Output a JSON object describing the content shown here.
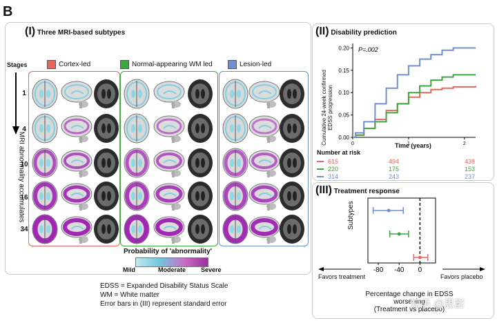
{
  "figure_letter": "B",
  "panel1": {
    "numeral": "(I)",
    "title": "Three MRI-based subtypes",
    "stages_label": "Stages",
    "axis_label": "MRI abnormality accumulates",
    "stages": [
      "1",
      "4",
      "10",
      "16",
      "34"
    ],
    "groups": [
      {
        "label": "Cortex-led",
        "color": "#e8665e"
      },
      {
        "label": "Normal-appearing WM led",
        "color": "#3aa83a"
      },
      {
        "label": "Lesion-led",
        "color": "#6f8fd0"
      }
    ],
    "colorbar": {
      "title": "Probability of 'abnormality'",
      "labels": [
        "Mild",
        "Moderate",
        "Severe"
      ]
    }
  },
  "panel2": {
    "numeral": "(II)",
    "title": "Disability prediction",
    "p_value": "P=.002",
    "ylabel": "Cumulative 24-week confirmed EDSS progression",
    "xlabel": "Time (years)",
    "risk_title": "Number at risk",
    "risk_rows": [
      {
        "color": "#e8665e",
        "values": [
          "615",
          "494",
          "438"
        ]
      },
      {
        "color": "#3aa83a",
        "values": [
          "220",
          "175",
          "153"
        ]
      },
      {
        "color": "#6f8fd0",
        "values": [
          "314",
          "243",
          "237"
        ]
      }
    ]
  },
  "panel3": {
    "numeral": "(III)",
    "title": "Treatment response",
    "ylabel": "Subtypes",
    "favors_treatment": "Favors treatment",
    "favors_placebo": "Favors placebo",
    "xlabel_line1": "Percentage change in EDSS",
    "xlabel_line2": "worsening",
    "xlabel_line3": "(Treatment vs placebo)"
  },
  "footnotes": [
    "EDSS = Expanded Disability Status Scale",
    "WM = White matter",
    "Error bars in (III) represent standard error"
  ],
  "watermark": "知乎 @思影",
  "chart_data": [
    {
      "type": "line",
      "title": "Disability prediction",
      "xlabel": "Time (years)",
      "ylabel": "Cumulative 24-week confirmed EDSS progression",
      "xlim": [
        0,
        2.2
      ],
      "ylim": [
        0,
        0.21
      ],
      "x_ticks": [
        0,
        1,
        2
      ],
      "y_ticks": [
        0.0,
        0.05,
        0.1,
        0.15,
        0.2
      ],
      "y_tick_labels": [
        "0.00",
        "0.05",
        "0.10",
        "0.15",
        "0.20"
      ],
      "series": [
        {
          "name": "Cortex-led",
          "color": "#e8665e",
          "x": [
            0,
            0.05,
            0.2,
            0.4,
            0.6,
            0.8,
            1.0,
            1.2,
            1.4,
            1.6,
            1.8,
            2.2
          ],
          "y": [
            0,
            0.005,
            0.02,
            0.04,
            0.06,
            0.075,
            0.09,
            0.1,
            0.107,
            0.11,
            0.113,
            0.115
          ]
        },
        {
          "name": "Normal-appearing WM led",
          "color": "#3aa83a",
          "x": [
            0,
            0.05,
            0.2,
            0.4,
            0.6,
            0.8,
            1.0,
            1.2,
            1.4,
            1.6,
            1.8,
            2.2
          ],
          "y": [
            0,
            0.005,
            0.02,
            0.035,
            0.055,
            0.075,
            0.1,
            0.115,
            0.128,
            0.135,
            0.14,
            0.14
          ]
        },
        {
          "name": "Lesion-led",
          "color": "#6f8fd0",
          "x": [
            0,
            0.05,
            0.2,
            0.4,
            0.6,
            0.8,
            1.0,
            1.2,
            1.4,
            1.6,
            1.8,
            2.2
          ],
          "y": [
            0,
            0.01,
            0.035,
            0.075,
            0.11,
            0.14,
            0.16,
            0.175,
            0.185,
            0.195,
            0.2,
            0.2
          ]
        }
      ]
    },
    {
      "type": "scatter",
      "title": "Treatment response",
      "xlabel": "Percentage change in EDSS worsening (Treatment vs placebo)",
      "ylabel": "Subtypes",
      "xlim": [
        -100,
        30
      ],
      "x_ticks": [
        -80,
        -40,
        0
      ],
      "points": [
        {
          "name": "Lesion-led",
          "color": "#6f8fd0",
          "estimate": -60,
          "low": -90,
          "high": -32
        },
        {
          "name": "Normal-appearing WM led",
          "color": "#3aa83a",
          "estimate": -40,
          "low": -58,
          "high": -22
        },
        {
          "name": "Cortex-led",
          "color": "#e8665e",
          "estimate": 0,
          "low": -12,
          "high": 15
        }
      ]
    }
  ]
}
